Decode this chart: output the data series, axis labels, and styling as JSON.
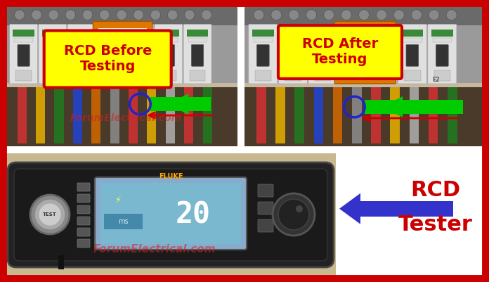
{
  "figure_width": 6.96,
  "figure_height": 4.01,
  "dpi": 100,
  "bg_color": "#ffffff",
  "border_color": "#cc0000",
  "label_before": "RCD Before\nTesting",
  "label_after": "RCD After\nTesting",
  "label_tester_line1": "RCD",
  "label_tester_line2": "Tester",
  "label_box_fill": "#ffff00",
  "label_box_edge": "#cc0000",
  "label_text_color": "#cc0000",
  "watermark": "ForumElectrical.com",
  "watermark_color": "#cc2222",
  "arrow_green": "#00cc00",
  "arrow_blue": "#3333cc",
  "arrow_red": "#cc0000",
  "circle_color": "#2222cc",
  "panel_bg_top": "#b0a898",
  "panel_bg_wires": "#5a4a3a",
  "breaker_white": "#e8e8e8",
  "breaker_green_stripe": "#3a7a3a",
  "breaker_orange": "#cc6600",
  "wall_bg": "#c8b8a0",
  "tester_bg": "#222222",
  "tester_body": "#1a1a1a",
  "screen_bg": "#7ab8d0",
  "screen_inner": "#5a98b0"
}
